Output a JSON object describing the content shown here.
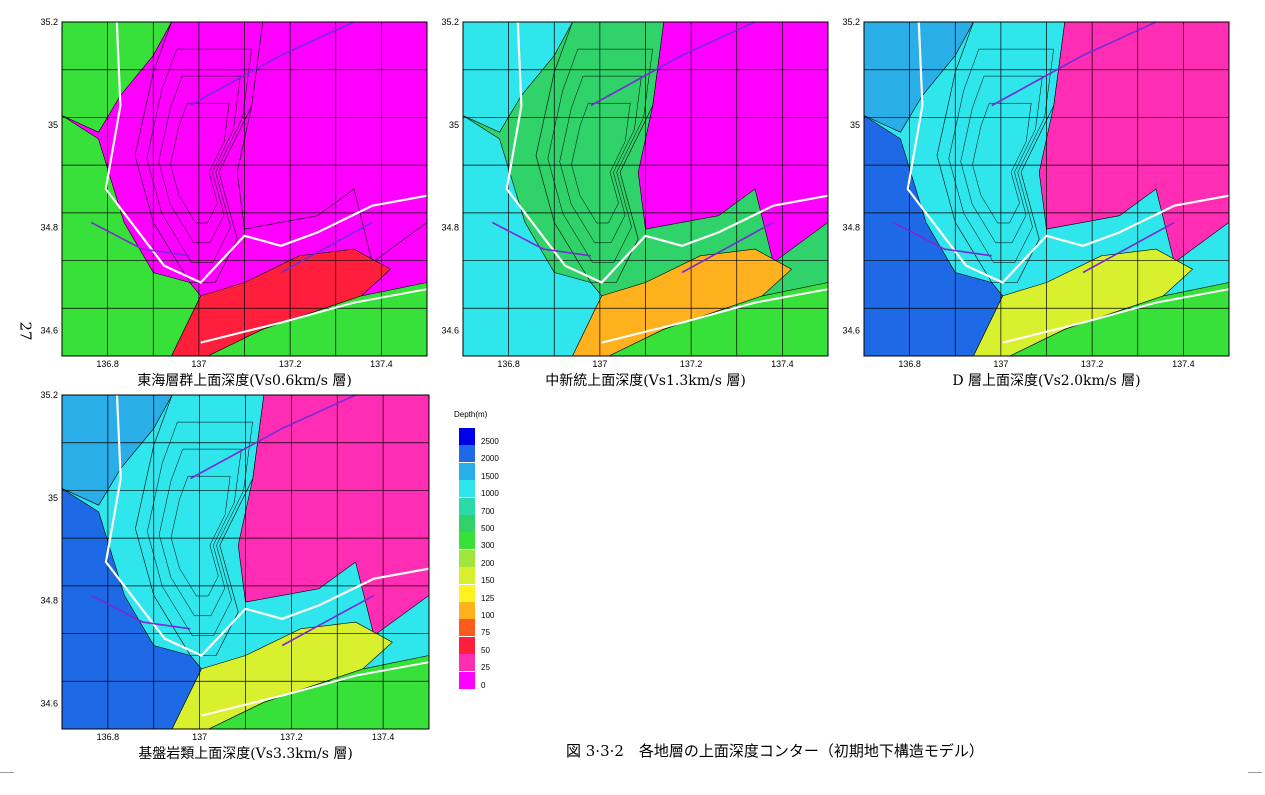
{
  "page_number": "27",
  "figure_title": "図 3·3·2　各地層の上面深度コンター（初期地下構造モデル）",
  "legend": {
    "title": "Depth(m)",
    "levels": [
      {
        "label": "2500",
        "color": "#0000e8"
      },
      {
        "label": "2000",
        "color": "#1e6ae6"
      },
      {
        "label": "1500",
        "color": "#2aaee8"
      },
      {
        "label": "1000",
        "color": "#2ee6ec"
      },
      {
        "label": "700",
        "color": "#2cd9a8"
      },
      {
        "label": "500",
        "color": "#2fd36a"
      },
      {
        "label": "300",
        "color": "#38e03a"
      },
      {
        "label": "200",
        "color": "#9ee63a"
      },
      {
        "label": "150",
        "color": "#d8f02e"
      },
      {
        "label": "125",
        "color": "#fff21e"
      },
      {
        "label": "100",
        "color": "#ffb21e"
      },
      {
        "label": "75",
        "color": "#ff5a1e"
      },
      {
        "label": "50",
        "color": "#ff1e3c"
      },
      {
        "label": "25",
        "color": "#ff2db4"
      },
      {
        "label": "0",
        "color": "#ff00ff"
      }
    ]
  },
  "chart_data": [
    {
      "type": "heatmap",
      "title": "東海層群上面深度(Vs0.6km/s 層)",
      "xlim": [
        136.7,
        137.5
      ],
      "ylim": [
        34.55,
        35.2
      ],
      "x_ticks": [
        "136.8",
        "137",
        "137.2",
        "137.4"
      ],
      "y_ticks": [
        "35.2",
        "35",
        "34.8",
        "34.6"
      ],
      "z_unit": "Depth(m)",
      "grid": true,
      "zones": {
        "west": "300",
        "northwest": "300",
        "center": "0",
        "east": "0",
        "south_coast": "50",
        "offshore": "300"
      }
    },
    {
      "type": "heatmap",
      "title": "中新統上面深度(Vs1.3km/s 層)",
      "xlim": [
        136.7,
        137.5
      ],
      "ylim": [
        34.55,
        35.2
      ],
      "x_ticks": [
        "136.8",
        "137",
        "137.2",
        "137.4"
      ],
      "y_ticks": [
        "35.2",
        "35",
        "34.8",
        "34.6"
      ],
      "z_unit": "Depth(m)",
      "grid": true,
      "zones": {
        "west": "1000",
        "northwest": "1000",
        "center": "500",
        "east": "0",
        "south_coast": "100",
        "offshore": "300"
      }
    },
    {
      "type": "heatmap",
      "title": "D 層上面深度(Vs2.0km/s 層)",
      "xlim": [
        136.7,
        137.5
      ],
      "ylim": [
        34.55,
        35.2
      ],
      "x_ticks": [
        "136.8",
        "137",
        "137.2",
        "137.4"
      ],
      "y_ticks": [
        "35.2",
        "35",
        "34.8",
        "34.6"
      ],
      "z_unit": "Depth(m)",
      "grid": true,
      "zones": {
        "west": "2000",
        "northwest": "1500",
        "center": "1000",
        "east": "25",
        "south_coast": "150",
        "offshore": "300"
      }
    },
    {
      "type": "heatmap",
      "title": "基盤岩類上面深度(Vs3.3km/s 層)",
      "xlim": [
        136.7,
        137.5
      ],
      "ylim": [
        34.55,
        35.2
      ],
      "x_ticks": [
        "136.8",
        "137",
        "137.2",
        "137.4"
      ],
      "y_ticks": [
        "35.2",
        "35",
        "34.8",
        "34.6"
      ],
      "z_unit": "Depth(m)",
      "grid": true,
      "zones": {
        "west": "2000",
        "northwest": "1500",
        "center": "1000",
        "east": "25",
        "south_coast": "150",
        "offshore": "300"
      }
    }
  ]
}
